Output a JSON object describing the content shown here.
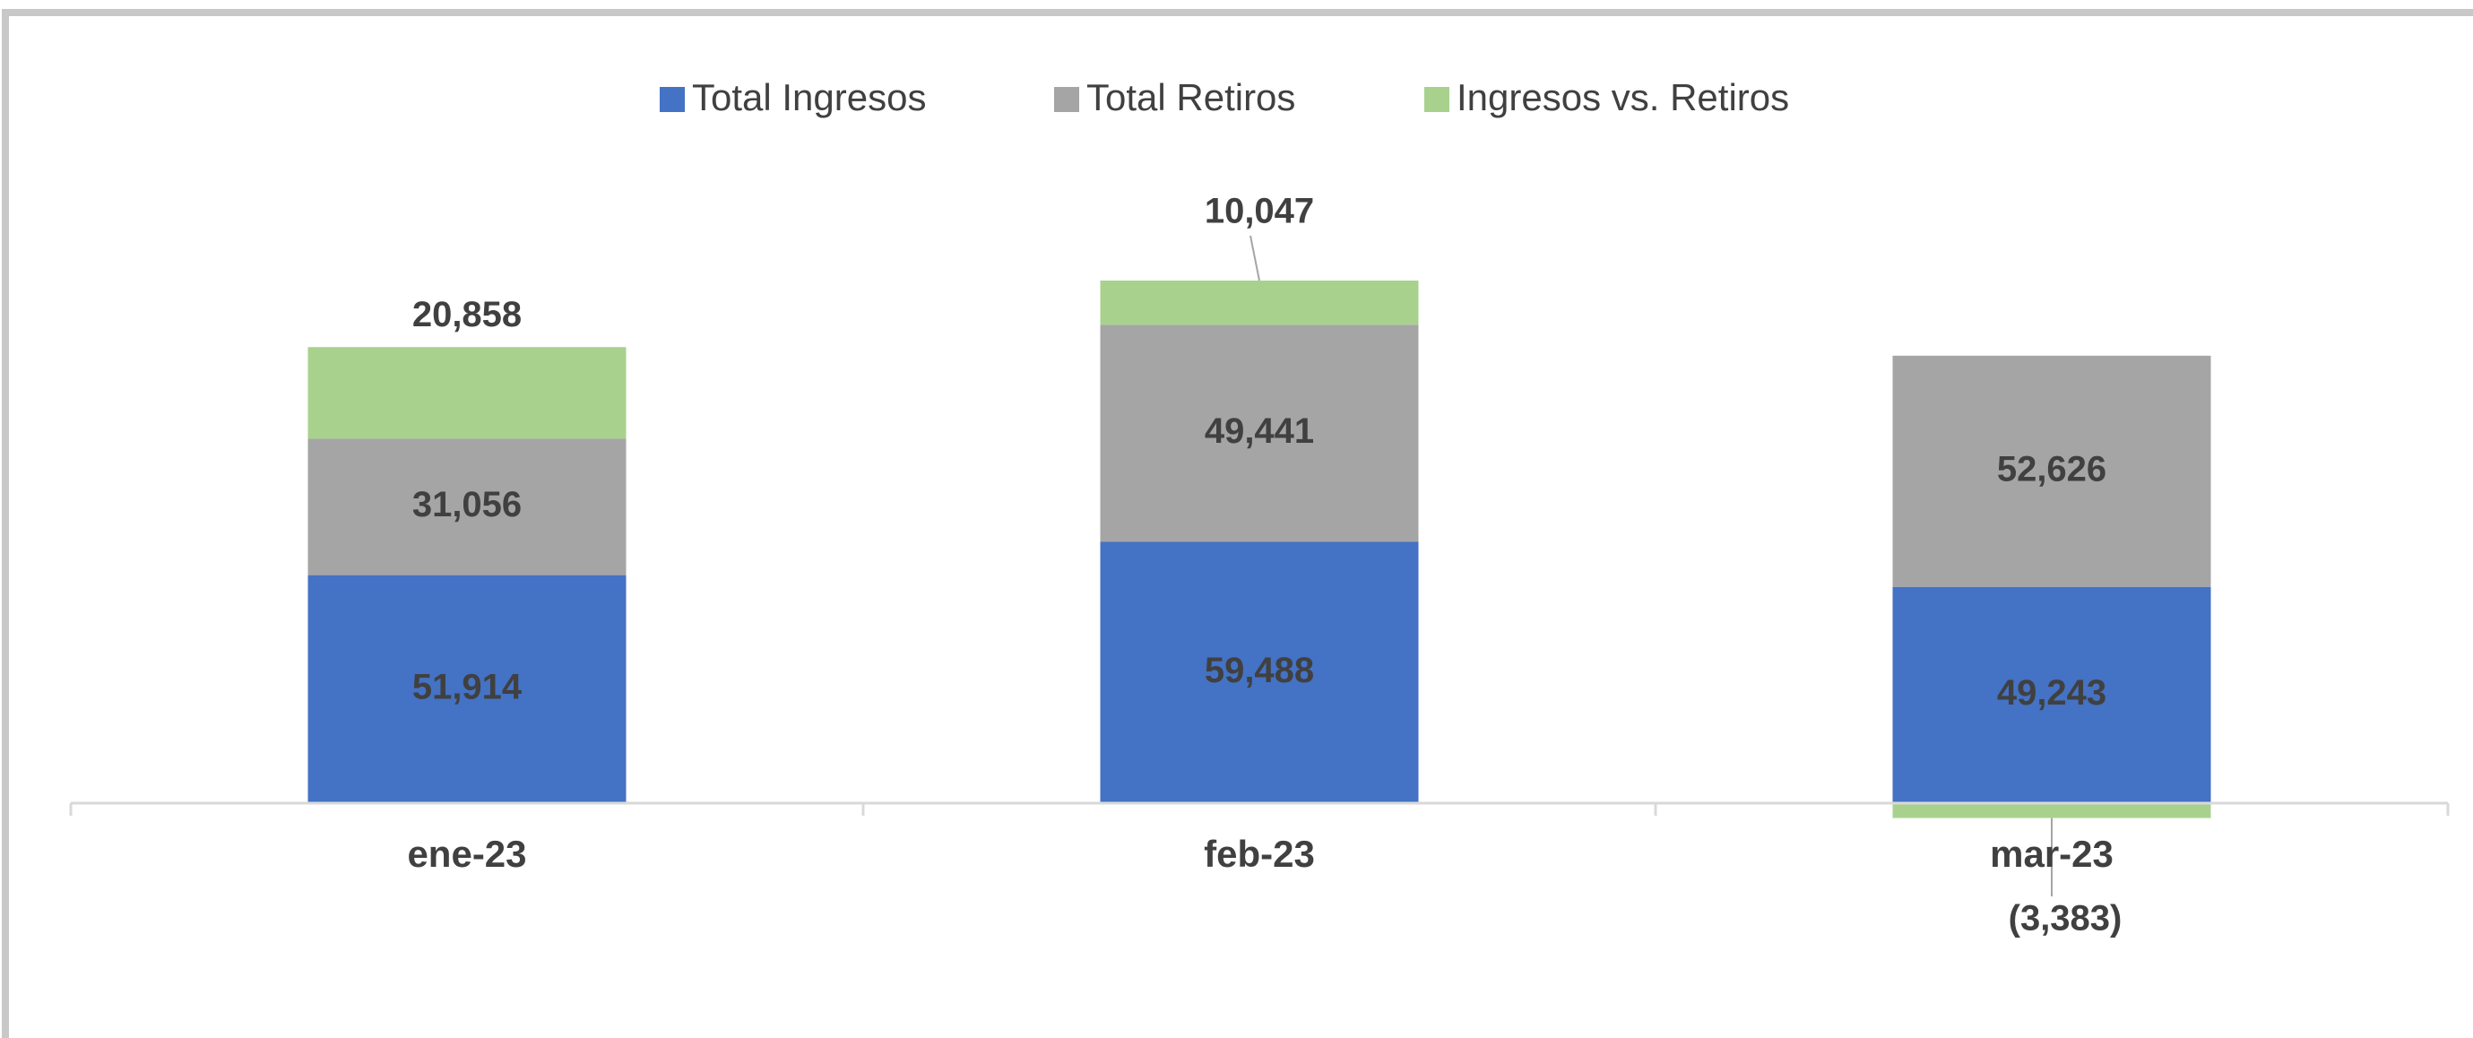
{
  "chart_data": {
    "type": "stacked_bar",
    "categories": [
      "ene-23",
      "feb-23",
      "mar-23"
    ],
    "series": [
      {
        "name": "Total Ingresos",
        "color": "#4472c4",
        "values": [
          51914,
          59488,
          49243
        ],
        "value_labels": [
          "51,914",
          "59,488",
          "49,243"
        ]
      },
      {
        "name": "Total Retiros",
        "color": "#a5a5a5",
        "values": [
          31056,
          49441,
          52626
        ],
        "value_labels": [
          "31,056",
          "49,441",
          "52,626"
        ]
      },
      {
        "name": "Ingresos vs. Retiros",
        "color": "#a9d18e",
        "values": [
          20858,
          10047,
          -3383
        ],
        "value_labels": [
          "20,858",
          "10,047",
          "(3,383)"
        ]
      }
    ],
    "legend": "top"
  }
}
